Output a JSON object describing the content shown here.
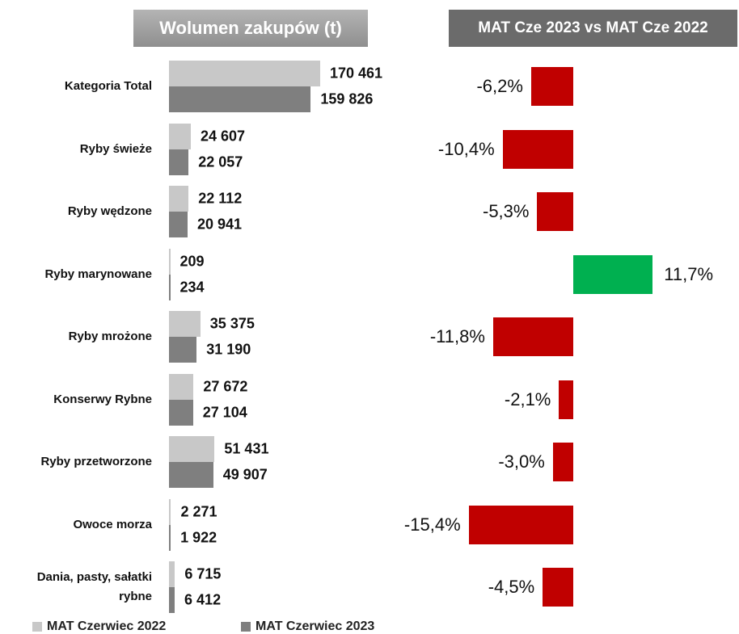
{
  "chart_data": [
    {
      "type": "hbar_grouped",
      "title": "Wolumen zakupów (t)",
      "categories": [
        "Kategoria Total",
        "Ryby świeże",
        "Ryby wędzone",
        "Ryby marynowane",
        "Ryby mrożone",
        "Konserwy Rybne",
        "Ryby przetworzone",
        "Owoce morza",
        "Dania, pasty, sałatki rybne"
      ],
      "series": [
        {
          "name": "MAT Czerwiec 2022",
          "color": "#c8c8c8",
          "values": [
            170461,
            24607,
            22112,
            209,
            35375,
            27672,
            51431,
            2271,
            6715
          ],
          "value_labels": [
            "170 461",
            "24 607",
            "22 112",
            "209",
            "35 375",
            "27 672",
            "51 431",
            "2 271",
            "6 715"
          ]
        },
        {
          "name": "MAT Czerwiec 2023",
          "color": "#7f7f7f",
          "values": [
            159826,
            22057,
            20941,
            234,
            31190,
            27104,
            49907,
            1922,
            6412
          ],
          "value_labels": [
            "159 826",
            "22 057",
            "20 941",
            "234",
            "31 190",
            "27 104",
            "49 907",
            "1 922",
            "6 412"
          ]
        }
      ],
      "legend": "bottom-left"
    },
    {
      "type": "diverging_bar",
      "title": "MAT Cze 2023 vs MAT Cze 2022",
      "values": [
        -6.2,
        -10.4,
        -5.3,
        11.7,
        -11.8,
        -2.1,
        -3.0,
        -15.4,
        -4.5
      ],
      "value_labels": [
        "-6,2%",
        "-10,4%",
        "-5,3%",
        "11,7%",
        "-11,8%",
        "-2,1%",
        "-3,0%",
        "-15,4%",
        "-4,5%"
      ],
      "colors": {
        "negative": "#c00000",
        "positive": "#00b050"
      }
    }
  ]
}
